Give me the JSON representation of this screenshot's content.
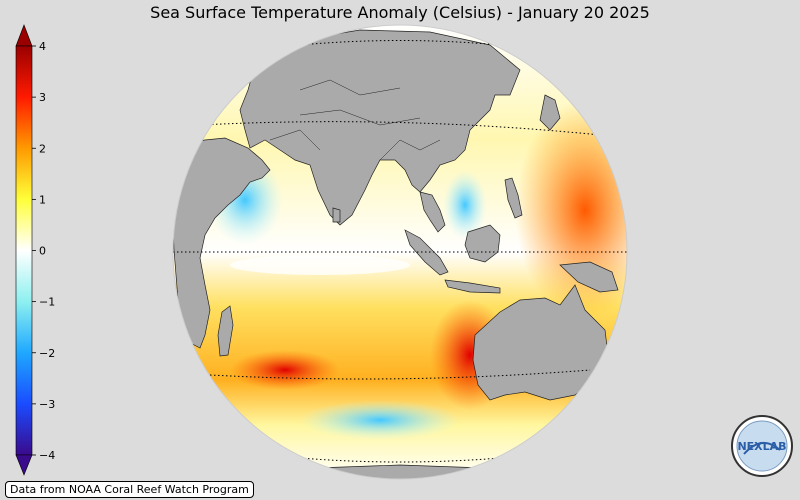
{
  "title": "Sea Surface Temperature Anomaly (Celsius) - January 20 2025",
  "credit": "Data from NOAA Coral Reef Watch Program",
  "colorbar": {
    "ticks": [
      "4",
      "3",
      "2",
      "1",
      "0",
      "−1",
      "−2",
      "−3",
      "−4"
    ],
    "colors": {
      "neg4": "#3a0a8c",
      "neg3": "#1a4cff",
      "neg2": "#1fa8ff",
      "neg1": "#8ef0f0",
      "zero": "#ffffff",
      "pos1": "#ffff3a",
      "pos2": "#ff9a00",
      "pos3": "#ff1a00",
      "pos4": "#9a0000"
    }
  },
  "map": {
    "projection": "orthographic",
    "center_longitude": "100E",
    "land_color": "#aaaaaa",
    "background_color": "#dcdcdc",
    "dominant_anomaly": "warm"
  },
  "logo": {
    "text": "NEXLAB"
  }
}
